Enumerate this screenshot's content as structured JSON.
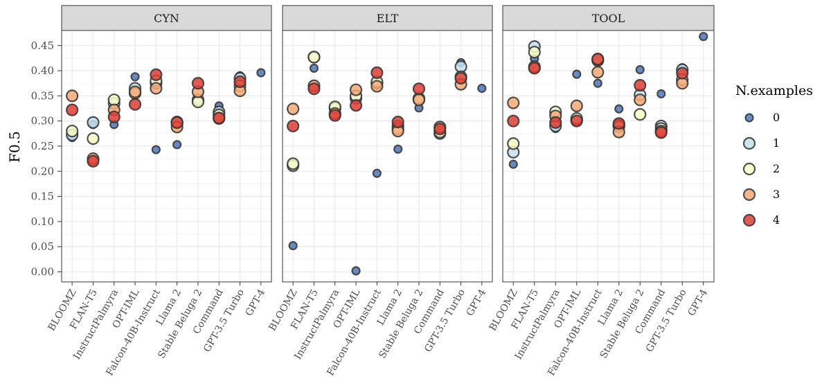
{
  "chart_data": {
    "type": "scatter",
    "ylabel": "F0.5",
    "xlabel": "",
    "ylim": [
      -0.02,
      0.48
    ],
    "yticks": [
      0.0,
      0.05,
      0.1,
      0.15,
      0.2,
      0.25,
      0.3,
      0.35,
      0.4,
      0.45
    ],
    "ytick_labels": [
      "0.00",
      "0.05",
      "0.10",
      "0.15",
      "0.20",
      "0.25",
      "0.30",
      "0.35",
      "0.40",
      "0.45"
    ],
    "grid": true,
    "categories": [
      "BLOOMZ",
      "FLAN-T5",
      "InstructPalmyra",
      "OPT-IML",
      "Falcon-40B-Instruct",
      "Llama 2",
      "Stable Beluga 2",
      "Command",
      "GPT-3.5 Turbo",
      "GPT-4"
    ],
    "legend": {
      "title": "N.examples",
      "position": "right",
      "entries": [
        {
          "label": "0",
          "color": "#4f77b6"
        },
        {
          "label": "1",
          "color": "#c6e1ef"
        },
        {
          "label": "2",
          "color": "#f8fbc6"
        },
        {
          "label": "3",
          "color": "#f5a977"
        },
        {
          "label": "4",
          "color": "#dc3d35"
        }
      ]
    },
    "panels": [
      {
        "label": "CYN",
        "series": [
          {
            "name": "0",
            "values": [
              0.267,
              0.293,
              0.293,
              0.388,
              0.243,
              0.253,
              0.34,
              0.33,
              0.39,
              0.396
            ]
          },
          {
            "name": "1",
            "values": [
              0.272,
              0.297,
              0.335,
              0.365,
              0.375,
              0.295,
              0.342,
              0.318,
              0.385,
              null
            ]
          },
          {
            "name": "2",
            "values": [
              0.28,
              0.265,
              0.342,
              0.355,
              0.38,
              0.298,
              0.338,
              0.312,
              0.37,
              null
            ]
          },
          {
            "name": "3",
            "values": [
              0.35,
              0.225,
              0.322,
              0.358,
              0.365,
              0.288,
              0.358,
              0.305,
              0.36,
              null
            ]
          },
          {
            "name": "4",
            "values": [
              0.322,
              0.22,
              0.308,
              0.333,
              0.392,
              0.297,
              0.375,
              0.306,
              0.378,
              null
            ]
          }
        ]
      },
      {
        "label": "ELT",
        "series": [
          {
            "name": "0",
            "values": [
              0.052,
              0.405,
              0.322,
              0.002,
              0.196,
              0.244,
              0.326,
              0.282,
              0.416,
              0.365
            ]
          },
          {
            "name": "1",
            "values": [
              0.211,
              0.427,
              0.325,
              0.345,
              0.375,
              0.29,
              0.343,
              0.275,
              0.408,
              null
            ]
          },
          {
            "name": "2",
            "values": [
              0.215,
              0.427,
              0.328,
              0.35,
              0.378,
              0.285,
              0.345,
              0.278,
              0.388,
              null
            ]
          },
          {
            "name": "3",
            "values": [
              0.324,
              0.37,
              0.315,
              0.362,
              0.369,
              0.28,
              0.342,
              0.288,
              0.373,
              null
            ]
          },
          {
            "name": "4",
            "values": [
              0.29,
              0.364,
              0.311,
              0.331,
              0.396,
              0.298,
              0.364,
              0.284,
              0.385,
              null
            ]
          }
        ]
      },
      {
        "label": "TOOL",
        "series": [
          {
            "name": "0",
            "values": [
              0.214,
              0.424,
              0.285,
              0.393,
              0.375,
              0.324,
              0.402,
              0.354,
              0.406,
              0.468
            ]
          },
          {
            "name": "1",
            "values": [
              0.238,
              0.448,
              0.29,
              0.302,
              0.42,
              0.292,
              0.352,
              0.29,
              0.402,
              null
            ]
          },
          {
            "name": "2",
            "values": [
              0.255,
              0.437,
              0.318,
              0.305,
              0.423,
              0.289,
              0.313,
              0.285,
              0.382,
              null
            ]
          },
          {
            "name": "3",
            "values": [
              0.336,
              0.408,
              0.31,
              0.33,
              0.397,
              0.278,
              0.342,
              0.28,
              0.375,
              null
            ]
          },
          {
            "name": "4",
            "values": [
              0.3,
              0.405,
              0.297,
              0.3,
              0.423,
              0.295,
              0.371,
              0.277,
              0.395,
              null
            ]
          }
        ]
      }
    ]
  }
}
